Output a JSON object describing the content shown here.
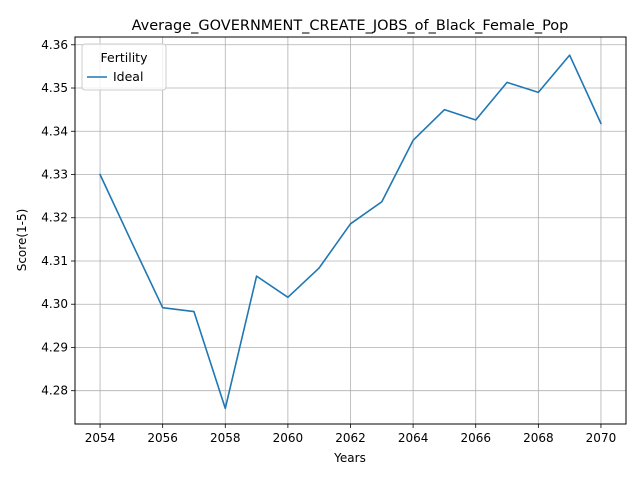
{
  "chart_data": {
    "type": "line",
    "title": "Average_GOVERNMENT_CREATE_JOBS_of_Black_Female_Pop",
    "xlabel": "Years",
    "ylabel": "Score(1-5)",
    "x": [
      2054,
      2055,
      2056,
      2057,
      2058,
      2059,
      2060,
      2061,
      2062,
      2063,
      2064,
      2065,
      2066,
      2067,
      2068,
      2069,
      2070
    ],
    "series": [
      {
        "name": "Ideal",
        "color": "#1f77b4",
        "values": [
          4.33,
          4.3145,
          4.2992,
          4.2983,
          4.2759,
          4.3065,
          4.3016,
          4.3084,
          4.3186,
          4.3237,
          4.3379,
          4.345,
          4.3426,
          4.3513,
          4.349,
          4.3576,
          4.3418
        ]
      }
    ],
    "xlim": [
      2053.2,
      2070.8
    ],
    "ylim": [
      4.2723,
      4.3618
    ],
    "xticks": [
      "2054",
      "2056",
      "2058",
      "2060",
      "2062",
      "2064",
      "2066",
      "2068",
      "2070"
    ],
    "yticks": [
      "4.28",
      "4.29",
      "4.30",
      "4.31",
      "4.32",
      "4.33",
      "4.34",
      "4.35",
      "4.36"
    ],
    "grid": true,
    "legend": {
      "title": "Fertility",
      "placement": "upper-left"
    }
  }
}
